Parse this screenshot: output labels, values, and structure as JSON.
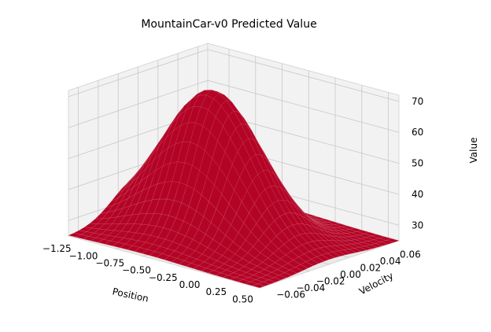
{
  "chart_data": {
    "type": "surface",
    "title": "MountainCar-v0 Predicted Value",
    "xlabel": "Position",
    "ylabel": "Velocity",
    "zlabel": "Value",
    "x_ticks": [
      "−1.25",
      "−1.00",
      "−0.75",
      "−0.50",
      "−0.25",
      "0.00",
      "0.25",
      "0.50"
    ],
    "y_ticks": [
      "−0.06",
      "−0.04",
      "−0.02",
      "0.00",
      "0.02",
      "0.04",
      "0.06"
    ],
    "z_ticks": [
      "30",
      "40",
      "50",
      "60",
      "70"
    ],
    "xlim": [
      -1.2,
      0.6
    ],
    "ylim": [
      -0.07,
      0.07
    ],
    "zlim": [
      25,
      72
    ],
    "surface_color": "#b40426",
    "surface_model": {
      "base": 25,
      "peak": 71,
      "peak_position": -0.5,
      "peak_velocity": 0.0,
      "position_spread": 0.6,
      "velocity_spread": 0.035
    },
    "grid": true
  }
}
